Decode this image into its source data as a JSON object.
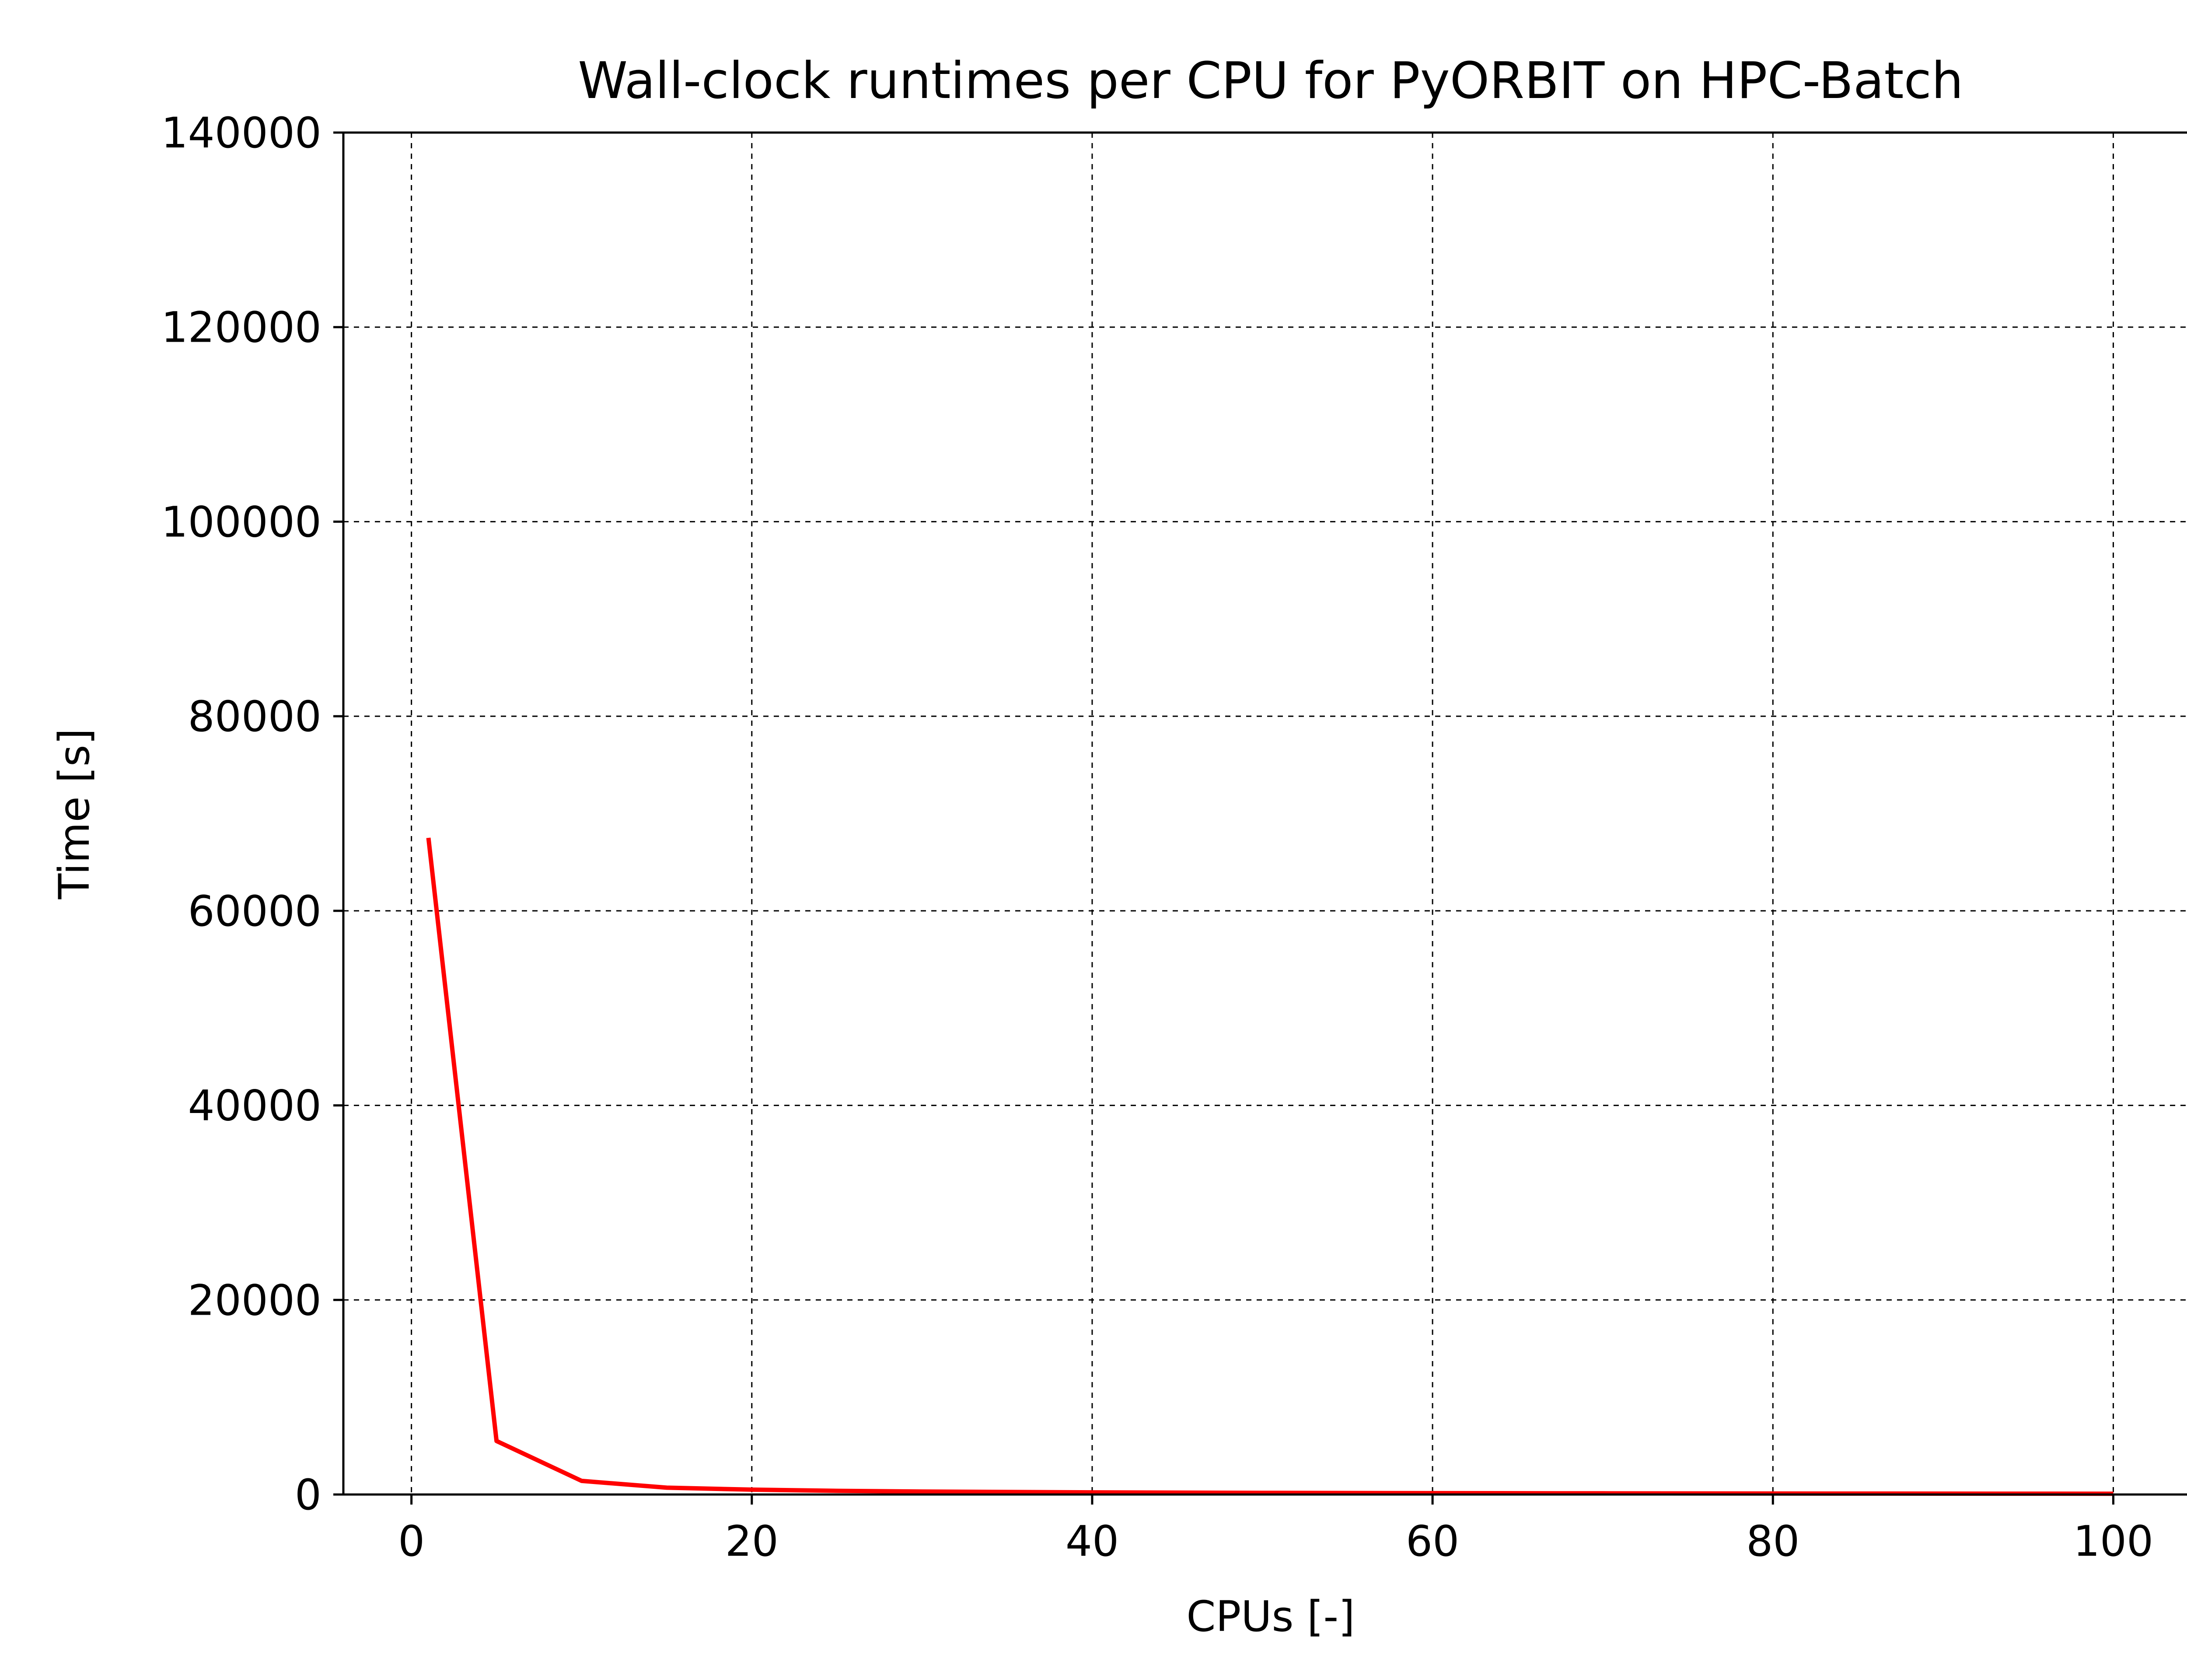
{
  "chart_data": {
    "type": "line",
    "title": "Wall-clock runtimes per CPU for PyORBIT on HPC-Batch",
    "xlabel": "CPUs [-]",
    "ylabel": "Time [s]",
    "xlim": [
      -4,
      105
    ],
    "ylim": [
      0,
      140000
    ],
    "xticks": [
      0,
      20,
      40,
      60,
      80,
      100
    ],
    "yticks": [
      0,
      20000,
      40000,
      60000,
      80000,
      100000,
      120000,
      140000
    ],
    "grid": true,
    "legend": "none",
    "series": [
      {
        "color": "#ff0000",
        "x": [
          1,
          5,
          10,
          15,
          20,
          25,
          30,
          40,
          50,
          60,
          70,
          80,
          90,
          100
        ],
        "y": [
          67500,
          5500,
          1400,
          700,
          500,
          380,
          300,
          220,
          170,
          140,
          120,
          100,
          90,
          80
        ]
      }
    ]
  }
}
